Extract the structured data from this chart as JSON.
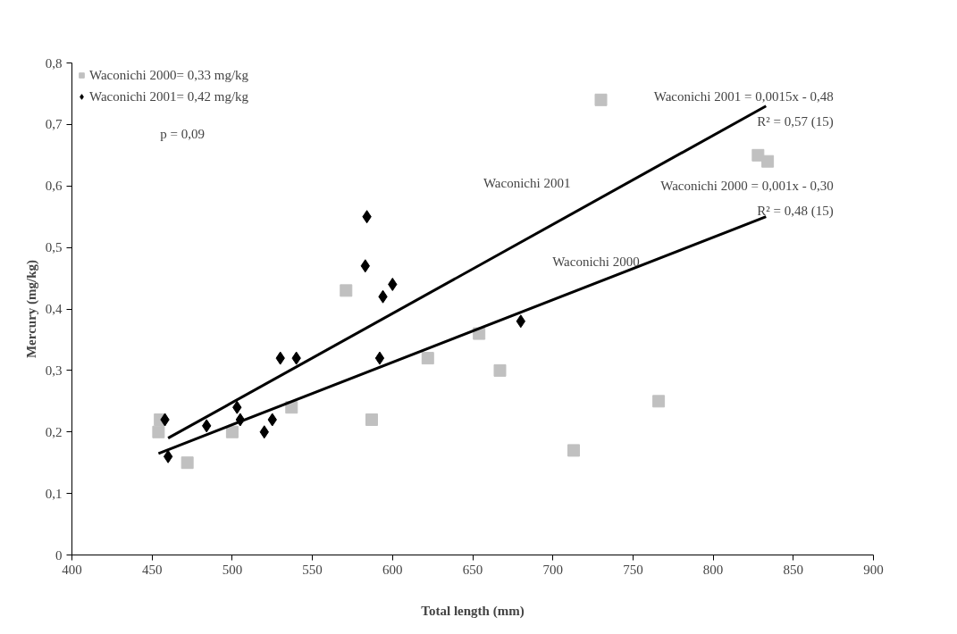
{
  "chart_data": {
    "type": "scatter",
    "xlabel": "Total length (mm)",
    "ylabel": "Mercury (mg/kg)",
    "xlim": [
      400,
      900
    ],
    "xticks": [
      400,
      450,
      500,
      550,
      600,
      650,
      700,
      750,
      800,
      850,
      900
    ],
    "ylim": [
      0,
      0.8
    ],
    "yticks": [
      {
        "value": 0,
        "label": "0"
      },
      {
        "value": 0.1,
        "label": "0,1"
      },
      {
        "value": 0.2,
        "label": "0,2"
      },
      {
        "value": 0.3,
        "label": "0,3"
      },
      {
        "value": 0.4,
        "label": "0,4"
      },
      {
        "value": 0.5,
        "label": "0,5"
      },
      {
        "value": 0.6,
        "label": "0,6"
      },
      {
        "value": 0.7,
        "label": "0,7"
      },
      {
        "value": 0.8,
        "label": "0,8"
      }
    ],
    "grid": false,
    "legend": "top left",
    "series": [
      {
        "name": "Waconichi 2000= 0,33 mg/kg",
        "marker": "square",
        "color": "#c0c0c0",
        "x": [
          455,
          454,
          472,
          500,
          537,
          571,
          587,
          622,
          654,
          667,
          713,
          730,
          766,
          828,
          834
        ],
        "values": [
          0.22,
          0.2,
          0.15,
          0.2,
          0.24,
          0.43,
          0.22,
          0.32,
          0.36,
          0.3,
          0.17,
          0.74,
          0.25,
          0.65,
          0.64
        ]
      },
      {
        "name": "Waconichi 2001= 0,42 mg/kg",
        "marker": "diamond",
        "color": "#000000",
        "x": [
          458,
          460,
          484,
          503,
          505,
          520,
          525,
          530,
          540,
          583,
          584,
          592,
          594,
          600,
          680
        ],
        "values": [
          0.22,
          0.16,
          0.21,
          0.24,
          0.22,
          0.2,
          0.22,
          0.32,
          0.32,
          0.47,
          0.55,
          0.32,
          0.42,
          0.44,
          0.38
        ]
      },
      {
        "name": "Waconichi 2001",
        "type": "line",
        "line_style": "solid",
        "color": "#000000",
        "x": [
          460,
          833
        ],
        "values": [
          0.19,
          0.73
        ]
      },
      {
        "name": "Waconichi 2000",
        "type": "line",
        "line_style": "solid",
        "color": "#000000",
        "x": [
          454,
          833
        ],
        "values": [
          0.165,
          0.55
        ]
      }
    ],
    "annotations": [
      "p = 0,09",
      "Waconichi 2001 = 0,0015x - 0,48",
      "R² = 0,57 (15)",
      "Waconichi 2000 = 0,001x - 0,30",
      "R² = 0,48 (15)"
    ]
  }
}
